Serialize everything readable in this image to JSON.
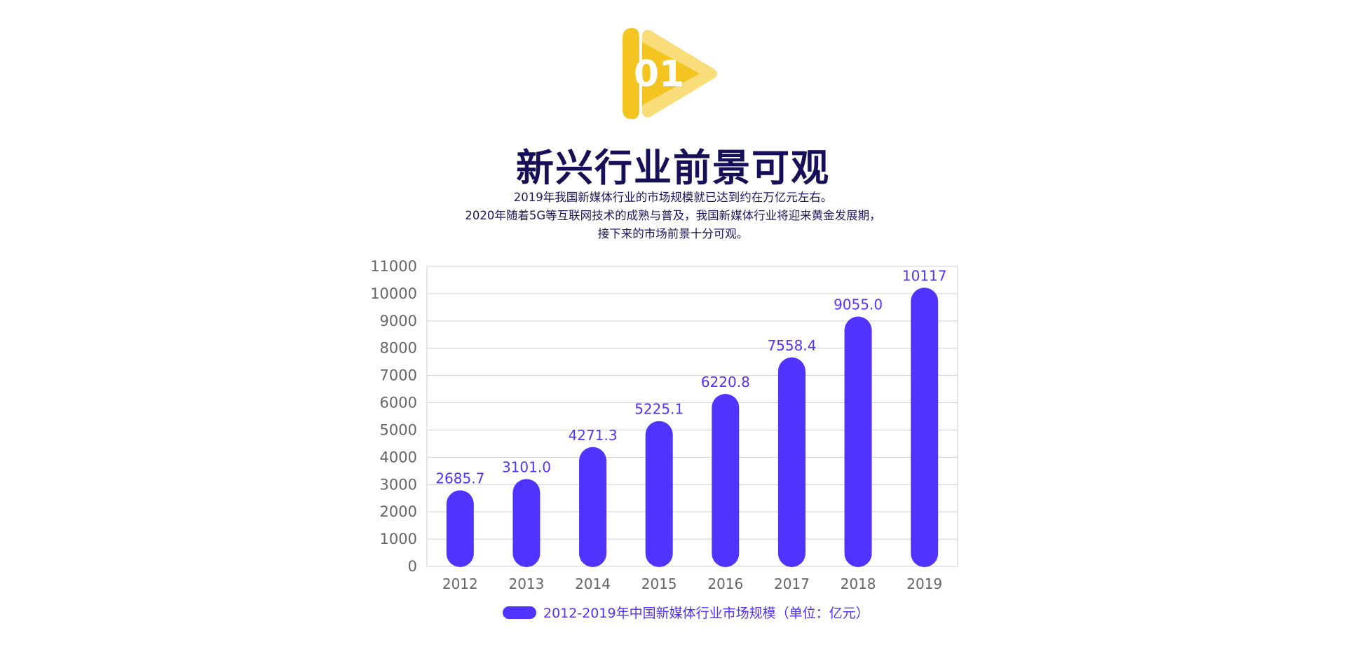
{
  "badge": {
    "number": "01"
  },
  "heading": "新兴行业前景可观",
  "description": [
    "2019年我国新媒体行业的市场规模就已达到约在万亿元左右。",
    "2020年随着5G等互联网技术的成熟与普及，我国新媒体行业将迎来黄金发展期，",
    "接下来的市场前景十分可观。"
  ],
  "colors": {
    "bar": "#5033ff",
    "title": "#170f57",
    "badge": "#f4c520",
    "badge_light": "#f8dd7a"
  },
  "chart_data": {
    "type": "bar",
    "categories": [
      "2012",
      "2013",
      "2014",
      "2015",
      "2016",
      "2017",
      "2018",
      "2019"
    ],
    "values": [
      2685.7,
      3101.0,
      4271.3,
      5225.1,
      6220.8,
      7558.4,
      9055.0,
      10117
    ],
    "value_labels": [
      "2685.7",
      "3101.0",
      "4271.3",
      "5225.1",
      "6220.8",
      "7558.4",
      "9055.0",
      "10117"
    ],
    "yticks": [
      "0",
      "1000",
      "2000",
      "3000",
      "4000",
      "5000",
      "6000",
      "7000",
      "8000",
      "9000",
      "10000",
      "11000"
    ],
    "ylim": [
      0,
      11000
    ],
    "grid": true,
    "legend": "2012-2019年中国新媒体行业市场规模（单位：亿元）",
    "legend_position": "bottom"
  }
}
